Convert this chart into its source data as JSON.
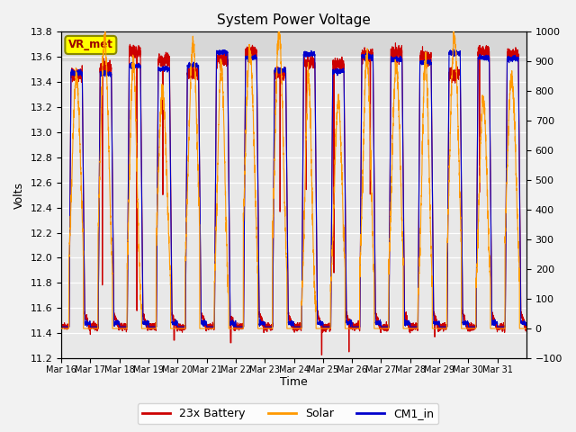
{
  "title": "System Power Voltage",
  "xlabel": "Time",
  "ylabel_left": "Volts",
  "ylim_left": [
    11.2,
    13.8
  ],
  "ylim_right": [
    -100,
    1000
  ],
  "yticks_left": [
    11.2,
    11.4,
    11.6,
    11.8,
    12.0,
    12.2,
    12.4,
    12.6,
    12.8,
    13.0,
    13.2,
    13.4,
    13.6,
    13.8
  ],
  "yticks_right": [
    -100,
    0,
    100,
    200,
    300,
    400,
    500,
    600,
    700,
    800,
    900,
    1000
  ],
  "xtick_labels": [
    "Mar 16",
    "Mar 17",
    "Mar 18",
    "Mar 19",
    "Mar 20",
    "Mar 21",
    "Mar 22",
    "Mar 23",
    "Mar 24",
    "Mar 25",
    "Mar 26",
    "Mar 27",
    "Mar 28",
    "Mar 29",
    "Mar 30",
    "Mar 31"
  ],
  "legend_labels": [
    "23x Battery",
    "Solar",
    "CM1_in"
  ],
  "legend_colors": [
    "#cc0000",
    "#ff9900",
    "#0000cc"
  ],
  "vr_met_box_color": "#ffff00",
  "vr_met_border_color": "#888800",
  "vr_met_text_color": "#990000",
  "battery_color": "#cc0000",
  "solar_color": "#ff9900",
  "cm1_color": "#0000cc",
  "plot_bg_color": "#e8e8e8",
  "grid_color": "#ffffff",
  "n_days": 16,
  "pts_per_day": 288
}
